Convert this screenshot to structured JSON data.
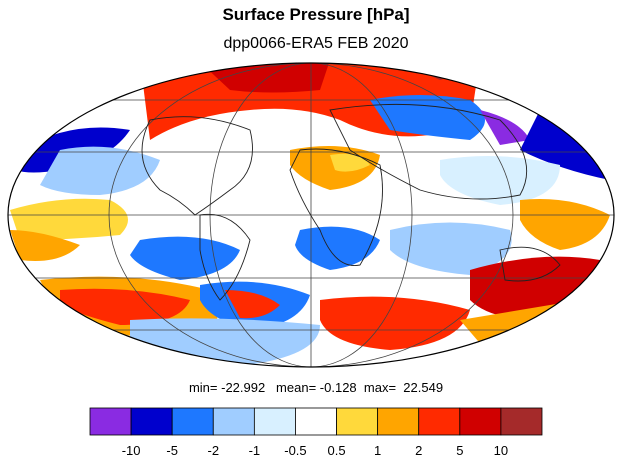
{
  "title": "Surface Pressure [hPa]",
  "subtitle": "dpp0066-ERA5  FEB 2020",
  "stats": {
    "min_label": "min=",
    "min": "-22.992",
    "mean_label": "mean=",
    "mean": "-0.128",
    "max_label": "max=",
    "max": "22.549"
  },
  "colorbar": {
    "colors": [
      "#8a2be2",
      "#0000cd",
      "#1e78ff",
      "#a0cdff",
      "#d8f0ff",
      "#ffffff",
      "#ffd93b",
      "#ffa500",
      "#ff2a00",
      "#d00000",
      "#a52a2a"
    ],
    "labels": [
      "-10",
      "-5",
      "-2",
      "-1",
      "-0.5",
      "0.5",
      "1",
      "2",
      "5",
      "10"
    ]
  },
  "map": {
    "projection": "mollweide",
    "background": "#ffffff"
  }
}
